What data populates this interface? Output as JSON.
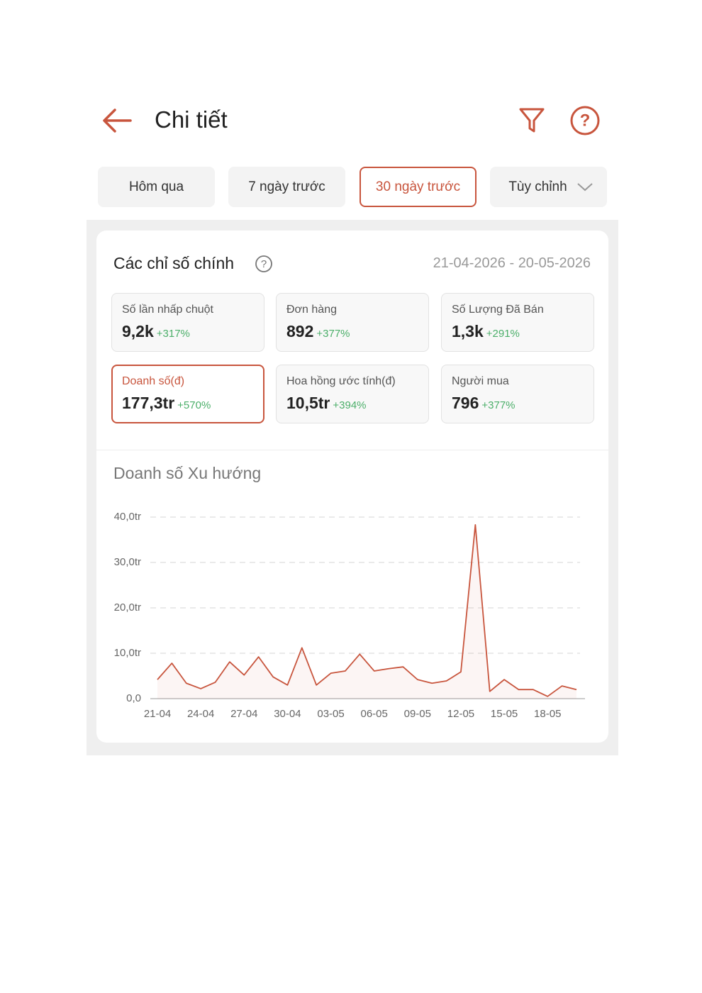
{
  "header": {
    "title": "Chi tiết"
  },
  "tabs": [
    "Hôm qua",
    "7 ngày trước",
    "30 ngày trước",
    "Tùy chỉnh"
  ],
  "section": {
    "title": "Các chỉ số chính",
    "date_range": "21-04-2026 - 20-05-2026"
  },
  "metrics": [
    {
      "label": "Số lần nhấp chuột",
      "value": "9,2k",
      "change": "+317%"
    },
    {
      "label": "Đơn hàng",
      "value": "892",
      "change": "+377%"
    },
    {
      "label": "Số Lượng Đã Bán",
      "value": "1,3k",
      "change": "+291%"
    },
    {
      "label": "Doanh số(đ)",
      "value": "177,3tr",
      "change": "+570%"
    },
    {
      "label": "Hoa hồng ước tính(đ)",
      "value": "10,5tr",
      "change": "+394%"
    },
    {
      "label": "Người mua",
      "value": "796",
      "change": "+377%"
    }
  ],
  "chart_data": {
    "type": "line",
    "title": "Doanh số Xu hướng",
    "categories": [
      "21-04",
      null,
      null,
      "24-04",
      null,
      null,
      "27-04",
      null,
      null,
      "30-04",
      null,
      null,
      "03-05",
      null,
      null,
      "06-05",
      null,
      null,
      "09-05",
      null,
      null,
      "12-05",
      null,
      null,
      "15-05",
      null,
      null,
      "18-05",
      null,
      null
    ],
    "series": [
      {
        "name": "Doanh số",
        "color": "#c8553d",
        "values": [
          4.2,
          7.8,
          3.4,
          2.2,
          3.6,
          8.1,
          5.2,
          9.2,
          4.8,
          3.0,
          11.2,
          3.0,
          5.6,
          6.1,
          9.8,
          6.1,
          6.6,
          7.0,
          4.2,
          3.4,
          3.9,
          5.9,
          38.3,
          1.6,
          4.2,
          2.0,
          2.0,
          0.5,
          2.8,
          2.0
        ]
      }
    ],
    "ylim": [
      0,
      40
    ],
    "yticks": [
      {
        "value": 0,
        "label": "0,0"
      },
      {
        "value": 10,
        "label": "10,0tr"
      },
      {
        "value": 20,
        "label": "20,0tr"
      },
      {
        "value": 30,
        "label": "30,0tr"
      },
      {
        "value": 40,
        "label": "40,0tr"
      }
    ],
    "grid": true
  }
}
